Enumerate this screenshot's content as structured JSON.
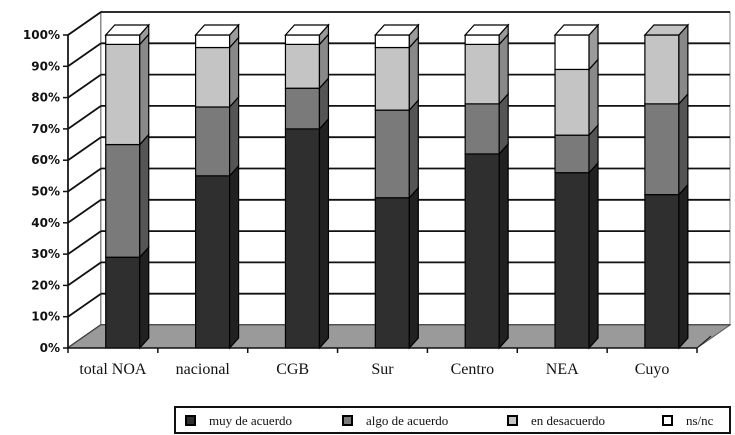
{
  "chart_data": {
    "type": "bar",
    "stacked": true,
    "three_d": true,
    "categories": [
      "total NOA",
      "nacional",
      "CGB",
      "Sur",
      "Centro",
      "NEA",
      "Cuyo"
    ],
    "series": [
      {
        "name": "muy de acuerdo",
        "color": "#2f2f2f",
        "values": [
          29,
          55,
          70,
          48,
          62,
          56,
          49
        ]
      },
      {
        "name": "algo de acuerdo",
        "color": "#7a7a7a",
        "values": [
          36,
          22,
          13,
          28,
          16,
          12,
          29
        ]
      },
      {
        "name": "en desacuerdo",
        "color": "#c4c4c4",
        "values": [
          32,
          19,
          14,
          20,
          19,
          21,
          22
        ]
      },
      {
        "name": "ns/nc",
        "color": "#ffffff",
        "values": [
          3,
          4,
          3,
          4,
          3,
          11,
          0
        ]
      }
    ],
    "y_ticks": [
      "0%",
      "10%",
      "20%",
      "30%",
      "40%",
      "50%",
      "60%",
      "70%",
      "80%",
      "90%",
      "100%"
    ],
    "ylim": [
      0,
      100
    ],
    "grid": true,
    "legend_position": "bottom"
  }
}
